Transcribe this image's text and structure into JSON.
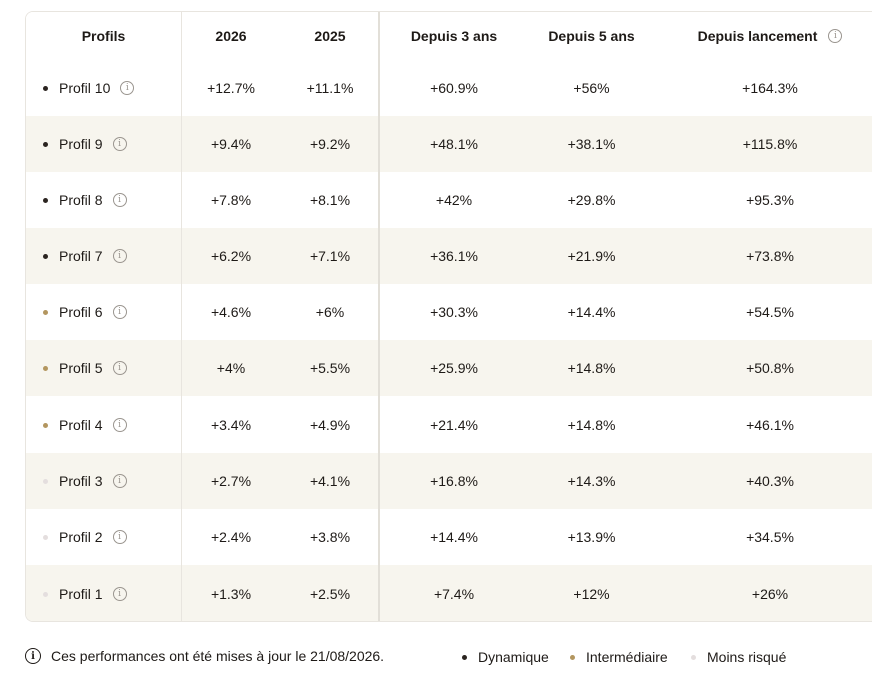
{
  "table": {
    "headers": [
      "Profils",
      "2026",
      "2025",
      "Depuis 3 ans",
      "Depuis 5 ans",
      "Depuis lancement"
    ],
    "rows": [
      {
        "profile": "Profil 10",
        "risk": "dynamique",
        "values": [
          "+12.7%",
          "+11.1%",
          "+60.9%",
          "+56%",
          "+164.3%"
        ]
      },
      {
        "profile": "Profil 9",
        "risk": "dynamique",
        "values": [
          "+9.4%",
          "+9.2%",
          "+48.1%",
          "+38.1%",
          "+115.8%"
        ]
      },
      {
        "profile": "Profil 8",
        "risk": "dynamique",
        "values": [
          "+7.8%",
          "+8.1%",
          "+42%",
          "+29.8%",
          "+95.3%"
        ]
      },
      {
        "profile": "Profil 7",
        "risk": "dynamique",
        "values": [
          "+6.2%",
          "+7.1%",
          "+36.1%",
          "+21.9%",
          "+73.8%"
        ]
      },
      {
        "profile": "Profil 6",
        "risk": "intermediaire",
        "values": [
          "+4.6%",
          "+6%",
          "+30.3%",
          "+14.4%",
          "+54.5%"
        ]
      },
      {
        "profile": "Profil 5",
        "risk": "intermediaire",
        "values": [
          "+4%",
          "+5.5%",
          "+25.9%",
          "+14.8%",
          "+50.8%"
        ]
      },
      {
        "profile": "Profil 4",
        "risk": "intermediaire",
        "values": [
          "+3.4%",
          "+4.9%",
          "+21.4%",
          "+14.8%",
          "+46.1%"
        ]
      },
      {
        "profile": "Profil 3",
        "risk": "moins_risque",
        "values": [
          "+2.7%",
          "+4.1%",
          "+16.8%",
          "+14.3%",
          "+40.3%"
        ]
      },
      {
        "profile": "Profil 2",
        "risk": "moins_risque",
        "values": [
          "+2.4%",
          "+3.8%",
          "+14.4%",
          "+13.9%",
          "+34.5%"
        ]
      },
      {
        "profile": "Profil 1",
        "risk": "moins_risque",
        "values": [
          "+1.3%",
          "+2.5%",
          "+7.4%",
          "+12%",
          "+26%"
        ]
      }
    ]
  },
  "risk_colors": {
    "dynamique": "#2b2420",
    "intermediaire": "#b3965f",
    "moins_risque": "#e4dede"
  },
  "icons": {
    "info": "info-circle-icon"
  },
  "footer": {
    "note": "Ces performances ont été mises à jour le 21/08/2026."
  },
  "legend": {
    "dynamique": "Dynamique",
    "intermediaire": "Intermédiaire",
    "moins_risque": "Moins risqué"
  }
}
